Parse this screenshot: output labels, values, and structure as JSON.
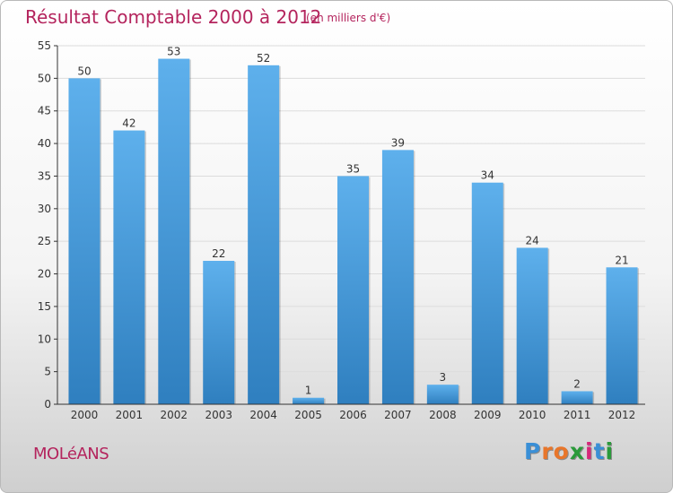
{
  "header": {
    "title": "Résultat Comptable 2000 à 2012",
    "unit": "(en milliers d'€)"
  },
  "footer": {
    "place": "MOLéANS",
    "logo_letters": [
      "P",
      "r",
      "o",
      "x",
      "i",
      "t",
      "i"
    ],
    "logo_colors": [
      "#3a8fd6",
      "#e8762b",
      "#e8762b",
      "#2a9a3a",
      "#d6287a",
      "#3a8fd6",
      "#2a9a3a"
    ]
  },
  "colors": {
    "bar_top": "#5eb0ec",
    "bar_bottom": "#2f7fbf",
    "grid": "#dcdcdc",
    "axis": "#333333"
  },
  "chart_data": {
    "type": "bar",
    "title": "Résultat Comptable 2000 à 2012",
    "xlabel": "",
    "ylabel": "",
    "categories": [
      "2000",
      "2001",
      "2002",
      "2003",
      "2004",
      "2005",
      "2006",
      "2007",
      "2008",
      "2009",
      "2010",
      "2011",
      "2012"
    ],
    "values": [
      50,
      42,
      53,
      22,
      52,
      1,
      35,
      39,
      3,
      34,
      24,
      2,
      21
    ],
    "ylim": [
      0,
      55
    ],
    "yticks": [
      0,
      5,
      10,
      15,
      20,
      25,
      30,
      35,
      40,
      45,
      50,
      55
    ],
    "grid": true
  }
}
